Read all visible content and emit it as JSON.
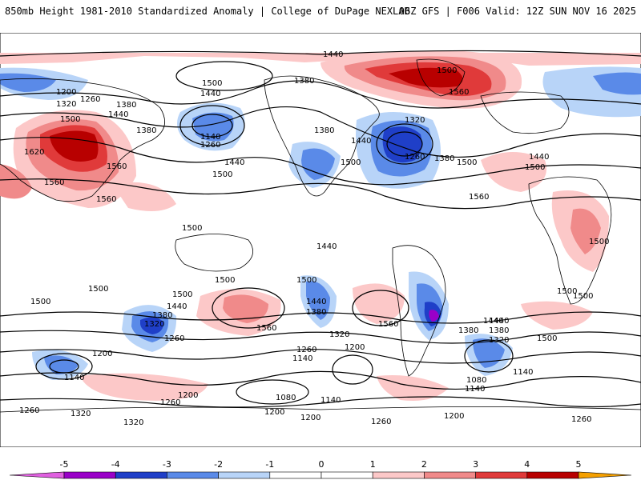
{
  "header": {
    "title_left": "850mb Height 1981-2010 Standardized Anomaly | College of DuPage NEXLAB",
    "title_right": "06Z GFS | F006 Valid: 12Z SUN NOV 16 2025"
  },
  "colors": {
    "neg5": "#e060e0",
    "neg4": "#9a00c8",
    "neg3": "#1f3fc8",
    "neg2": "#5a8ae8",
    "neg1": "#b8d4f8",
    "zero": "#ffffff",
    "pos1": "#fcc8c8",
    "pos2": "#f08a8a",
    "pos3": "#e03a3a",
    "pos4": "#b80000",
    "pos5": "#f5a000",
    "land": "#000000",
    "contour": "#000000"
  },
  "colorbar": {
    "ticks": [
      "-5",
      "-4",
      "-3",
      "-2",
      "-1",
      "0",
      "1",
      "2",
      "3",
      "4",
      "5"
    ]
  },
  "contour_labels": [
    {
      "text": "1440"
    },
    {
      "text": "1500"
    },
    {
      "text": "1200"
    },
    {
      "text": "1320"
    },
    {
      "text": "1260"
    },
    {
      "text": "1380"
    },
    {
      "text": "1440"
    },
    {
      "text": "1500"
    },
    {
      "text": "1440"
    },
    {
      "text": "1380"
    },
    {
      "text": "1500"
    },
    {
      "text": "1620"
    },
    {
      "text": "1560"
    },
    {
      "text": "1560"
    },
    {
      "text": "1560"
    },
    {
      "text": "1380"
    },
    {
      "text": "1140"
    },
    {
      "text": "1260"
    },
    {
      "text": "1440"
    },
    {
      "text": "1500"
    },
    {
      "text": "1380"
    },
    {
      "text": "1440"
    },
    {
      "text": "1320"
    },
    {
      "text": "1260"
    },
    {
      "text": "1380"
    },
    {
      "text": "1500"
    },
    {
      "text": "1500"
    },
    {
      "text": "1560"
    },
    {
      "text": "1440"
    },
    {
      "text": "1500"
    },
    {
      "text": "1560"
    },
    {
      "text": "1500"
    },
    {
      "text": "1440"
    },
    {
      "text": "1500"
    },
    {
      "text": "1500"
    },
    {
      "text": "1500"
    },
    {
      "text": "1500"
    },
    {
      "text": "1500"
    },
    {
      "text": "1500"
    },
    {
      "text": "1440"
    },
    {
      "text": "1380"
    },
    {
      "text": "1500"
    },
    {
      "text": "1440"
    },
    {
      "text": "1380"
    },
    {
      "text": "1320"
    },
    {
      "text": "1260"
    },
    {
      "text": "1560"
    },
    {
      "text": "1440"
    },
    {
      "text": "1380"
    },
    {
      "text": "1560"
    },
    {
      "text": "1320"
    },
    {
      "text": "1260"
    },
    {
      "text": "1200"
    },
    {
      "text": "1140"
    },
    {
      "text": "1440"
    },
    {
      "text": "1380"
    },
    {
      "text": "1320"
    },
    {
      "text": "1200"
    },
    {
      "text": "1140"
    },
    {
      "text": "1080"
    },
    {
      "text": "1140"
    },
    {
      "text": "1500"
    },
    {
      "text": "1200"
    },
    {
      "text": "1140"
    },
    {
      "text": "1200"
    },
    {
      "text": "1260"
    },
    {
      "text": "1080"
    },
    {
      "text": "1140"
    },
    {
      "text": "1260"
    },
    {
      "text": "1320"
    },
    {
      "text": "1320"
    },
    {
      "text": "1200"
    },
    {
      "text": "1260"
    },
    {
      "text": "1200"
    },
    {
      "text": "1260"
    },
    {
      "text": "1500"
    }
  ]
}
